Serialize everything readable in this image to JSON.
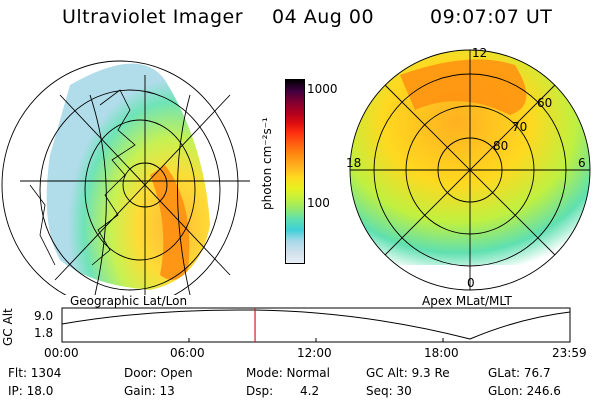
{
  "header": {
    "title": "Ultraviolet Imager",
    "date": "04 Aug 00",
    "time": "09:07:07 UT"
  },
  "left_map": {
    "caption": "Geographic Lat/Lon"
  },
  "right_map": {
    "caption": "Apex MLat/MLT",
    "mlt_labels": [
      "12",
      "18",
      "6",
      "0"
    ],
    "mlat_labels": [
      "60",
      "70",
      "80"
    ]
  },
  "colorbar": {
    "unit_label": "photon cm⁻²s⁻¹",
    "ticks": [
      "1000",
      "100"
    ],
    "colors": [
      "#e8eef4",
      "#cfe0ec",
      "#a8d8e8",
      "#3fd0d8",
      "#5fe0b0",
      "#90e870",
      "#c0f040",
      "#e8f020",
      "#ffd820",
      "#ffb020",
      "#ff8c10",
      "#ff6010",
      "#ff3010",
      "#e01010",
      "#b00020",
      "#800030",
      "#400040",
      "#000000"
    ]
  },
  "timeline": {
    "axis_label": "GC Alt",
    "y_ticks": [
      "9.0",
      "1.8"
    ],
    "x_ticks": [
      "00:00",
      "06:00",
      "12:00",
      "18:00",
      "23:59"
    ],
    "marker_hour": 9.12,
    "marker_color": "#cc2222"
  },
  "footer": {
    "flt": "Flt: 1304",
    "ip": "IP: 18.0",
    "door": "Door: Open",
    "gain": "Gain: 13",
    "mode": "Mode: Normal",
    "dsp_label": "Dsp:",
    "dsp_value": "4.2",
    "gc_alt": "GC Alt: 9.3 Re",
    "seq": "Seq: 30",
    "glat": "GLat: 76.7",
    "glon": "GLon: 246.6"
  }
}
